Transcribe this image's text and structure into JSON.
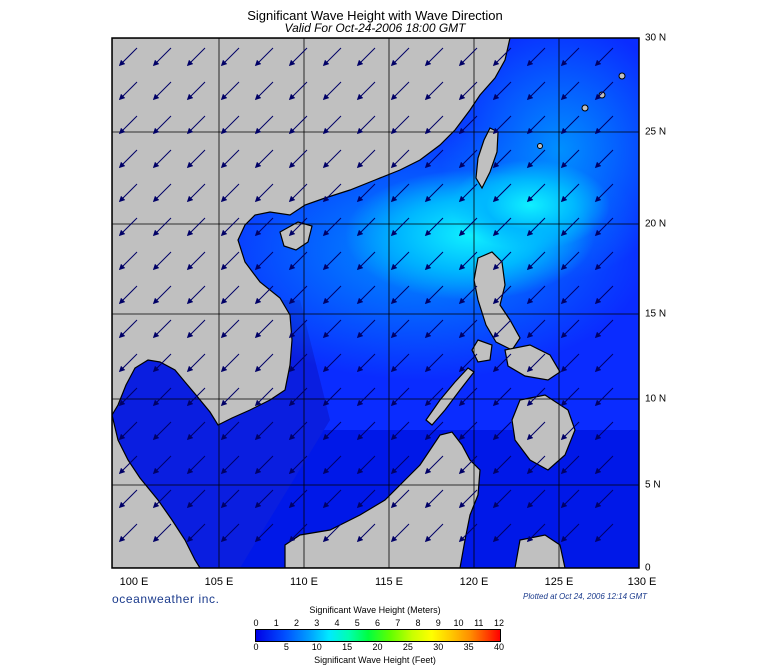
{
  "title": "Significant Wave Height with Wave Direction",
  "subtitle": "Valid For Oct-24-2006 18:00 GMT",
  "lon_labels": [
    "100 E",
    "105 E",
    "110 E",
    "115 E",
    "120 E",
    "125 E",
    "130 E"
  ],
  "lat_labels": [
    "30 N",
    "25 N",
    "20 N",
    "15 N",
    "10 N",
    "5 N",
    "0"
  ],
  "brand": "oceanweather inc.",
  "plotted_at": "Plotted at Oct 24, 2006 12:14 GMT",
  "colorbar": {
    "title_meters": "Significant Wave Height (Meters)",
    "title_feet": "Significant Wave Height (Feet)",
    "meter_ticks": [
      "0",
      "1",
      "2",
      "3",
      "4",
      "5",
      "6",
      "7",
      "8",
      "9",
      "10",
      "11",
      "12"
    ],
    "feet_ticks": [
      "0",
      "5",
      "10",
      "15",
      "20",
      "25",
      "30",
      "35",
      "40"
    ]
  },
  "map_data": {
    "lon_range": [
      99,
      130
    ],
    "lat_range": [
      0,
      30
    ],
    "wave_direction": "NE to SW (arrows pointing southwest)",
    "colors": {
      "land": "#c0c0c0",
      "sea_low": "#0000e6",
      "sea_mid": "#0070ff",
      "sea_high": "#00d8ff",
      "border": "#000000",
      "arrow": "#000066"
    }
  }
}
